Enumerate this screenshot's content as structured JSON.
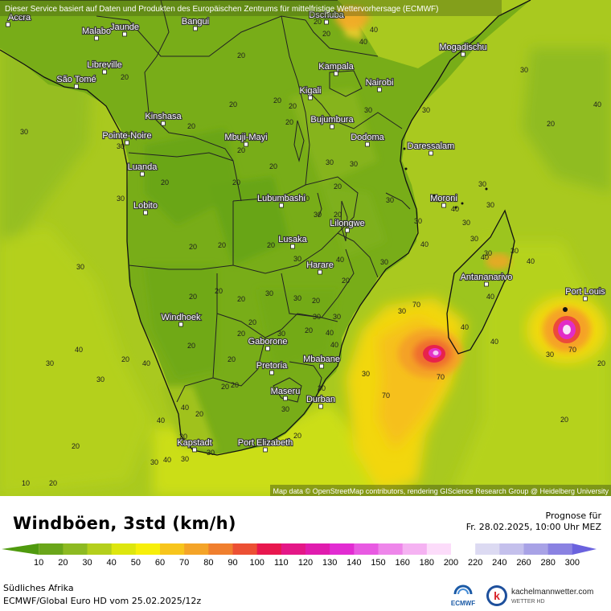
{
  "header_notice": "Dieser Service basiert auf Daten und Produkten des Europäischen Zentrums für mittelfristige Wettervorhersage (ECMWF)",
  "attribution": "Map data © OpenStreetMap contributors, rendering GIScience Research Group @ Heidelberg University",
  "title": "Windböen, 3std (km/h)",
  "forecast_label": "Prognose für",
  "forecast_time": "Fr. 28.02.2025, 10:00 Uhr MEZ",
  "region": "Südliches Afrika",
  "model_run": "ECMWF/Global Euro HD vom  25.02.2025/12z",
  "brands": {
    "ecmwf": "ECMWF",
    "km_name": "kachelmannwetter.com",
    "km_sub": "WETTER HD",
    "km_logo_letter": "k"
  },
  "legend": {
    "labels": [
      "10",
      "20",
      "30",
      "40",
      "50",
      "60",
      "70",
      "80",
      "90",
      "100",
      "110",
      "120",
      "130",
      "140",
      "150",
      "160",
      "180",
      "200",
      "220",
      "240",
      "260",
      "280",
      "300"
    ],
    "colors": [
      "#4f9a0e",
      "#6aa61a",
      "#8dba22",
      "#b4cf1c",
      "#dde60e",
      "#f7ef0a",
      "#f7c51c",
      "#f4a428",
      "#f07f2e",
      "#ec5034",
      "#e8174e",
      "#e41787",
      "#e01cae",
      "#e22cd2",
      "#e85ae2",
      "#ee86ea",
      "#f5b2f2",
      "#fcdcfa",
      "#ffffff",
      "#dcdaf2",
      "#c4c0ec",
      "#a8a2e6",
      "#8a82e2",
      "#6a62de"
    ]
  },
  "cities": [
    {
      "name": "Accra"
    },
    {
      "name": "Malabo"
    },
    {
      "name": "Jaunde"
    },
    {
      "name": "Bangui"
    },
    {
      "name": "Dschuba"
    },
    {
      "name": "Mogadischu"
    },
    {
      "name": "Libreville"
    },
    {
      "name": "São Tomé"
    },
    {
      "name": "Kampala"
    },
    {
      "name": "Nairobi"
    },
    {
      "name": "Kigali"
    },
    {
      "name": "Kinshasa"
    },
    {
      "name": "Bujumbura"
    },
    {
      "name": "Pointe-Noire"
    },
    {
      "name": "Mbuji-Mayi"
    },
    {
      "name": "Dodoma"
    },
    {
      "name": "Daressalam"
    },
    {
      "name": "Luanda"
    },
    {
      "name": "Lubumbashi"
    },
    {
      "name": "Moroni"
    },
    {
      "name": "Lobito"
    },
    {
      "name": "Lilongwe"
    },
    {
      "name": "Lusaka"
    },
    {
      "name": "Antananarivo"
    },
    {
      "name": "Harare"
    },
    {
      "name": "Port Louis"
    },
    {
      "name": "Windhoek"
    },
    {
      "name": "Gaborone"
    },
    {
      "name": "Pretoria"
    },
    {
      "name": "Mbabane"
    },
    {
      "name": "Maseru"
    },
    {
      "name": "Durban"
    },
    {
      "name": "Kapstadt"
    },
    {
      "name": "Port Elizabeth"
    }
  ],
  "contour_labels": [
    "30",
    "20",
    "20",
    "40",
    "40",
    "30",
    "20",
    "20",
    "20",
    "30",
    "30",
    "20",
    "20",
    "30",
    "30",
    "20",
    "20",
    "20",
    "30",
    "20",
    "20",
    "20",
    "20",
    "30",
    "30",
    "30",
    "30",
    "30",
    "40",
    "30",
    "30",
    "30",
    "20",
    "30",
    "30",
    "40",
    "40",
    "20",
    "20",
    "20",
    "40",
    "30",
    "20",
    "20",
    "20",
    "30",
    "30",
    "20",
    "20",
    "30",
    "30",
    "20",
    "20",
    "20",
    "30",
    "40",
    "40",
    "30",
    "40",
    "40",
    "40",
    "30",
    "70",
    "70",
    "30",
    "30",
    "40",
    "40",
    "40",
    "30",
    "20",
    "20",
    "20",
    "20",
    "30",
    "30",
    "30",
    "20",
    "30",
    "70",
    "70",
    "40",
    "40",
    "20",
    "20",
    "20",
    "20",
    "30",
    "10",
    "20",
    "20",
    "40",
    "30",
    "30",
    "30",
    "40",
    "20",
    "20",
    "20"
  ]
}
